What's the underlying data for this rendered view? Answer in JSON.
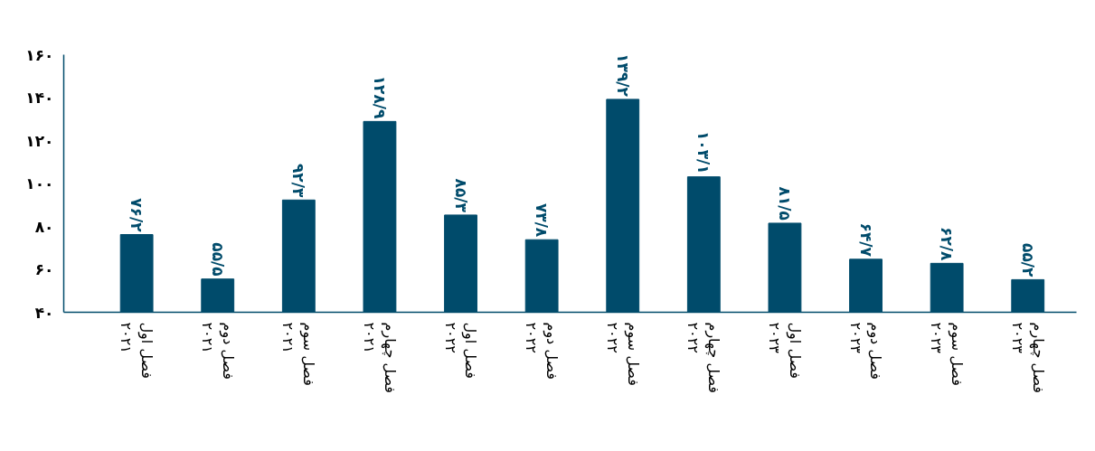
{
  "chart_data": {
    "type": "bar",
    "categories": [
      "فصل اول\n۲۰۲۱",
      "فصل دوم\n۲۰۲۱",
      "فصل سوم\n۲۰۲۱",
      "فصل چهارم\n۲۰۲۱",
      "فصل اول\n۲۰۲۲",
      "فصل دوم\n۲۰۲۲",
      "فصل سوم\n۲۰۲۲",
      "فصل چهارم\n۲۰۲۲",
      "فصل اول\n۲۰۲۳",
      "فصل دوم\n۲۰۲۳",
      "فصل سوم\n۲۰۲۳",
      "فصل چهارم\n۲۰۲۳"
    ],
    "values": [
      76.2,
      55.5,
      92.3,
      128.9,
      85.3,
      73.8,
      139.2,
      103.1,
      81.5,
      64.7,
      62.8,
      55.2
    ],
    "value_labels": [
      "۷۶/۲",
      "۵۵/۵",
      "۹۲/۳",
      "۱۲۸/۹",
      "۸۵/۳",
      "۷۳/۸",
      "۱۳۹/۲",
      "۱۰۳/۱",
      "۸۱/۵",
      "۶۴/۷",
      "۶۲/۸",
      "۵۵/۲"
    ],
    "color": "#004b6b",
    "ylim": [
      40,
      160
    ],
    "yticks": [
      {
        "value": 40,
        "label": "۴۰"
      },
      {
        "value": 60,
        "label": "۶۰"
      },
      {
        "value": 80,
        "label": "۸۰"
      },
      {
        "value": 100,
        "label": "۱۰۰"
      },
      {
        "value": 120,
        "label": "۱۲۰"
      },
      {
        "value": 140,
        "label": "۱۴۰"
      },
      {
        "value": 160,
        "label": "۱۶۰"
      }
    ],
    "grid": false
  }
}
